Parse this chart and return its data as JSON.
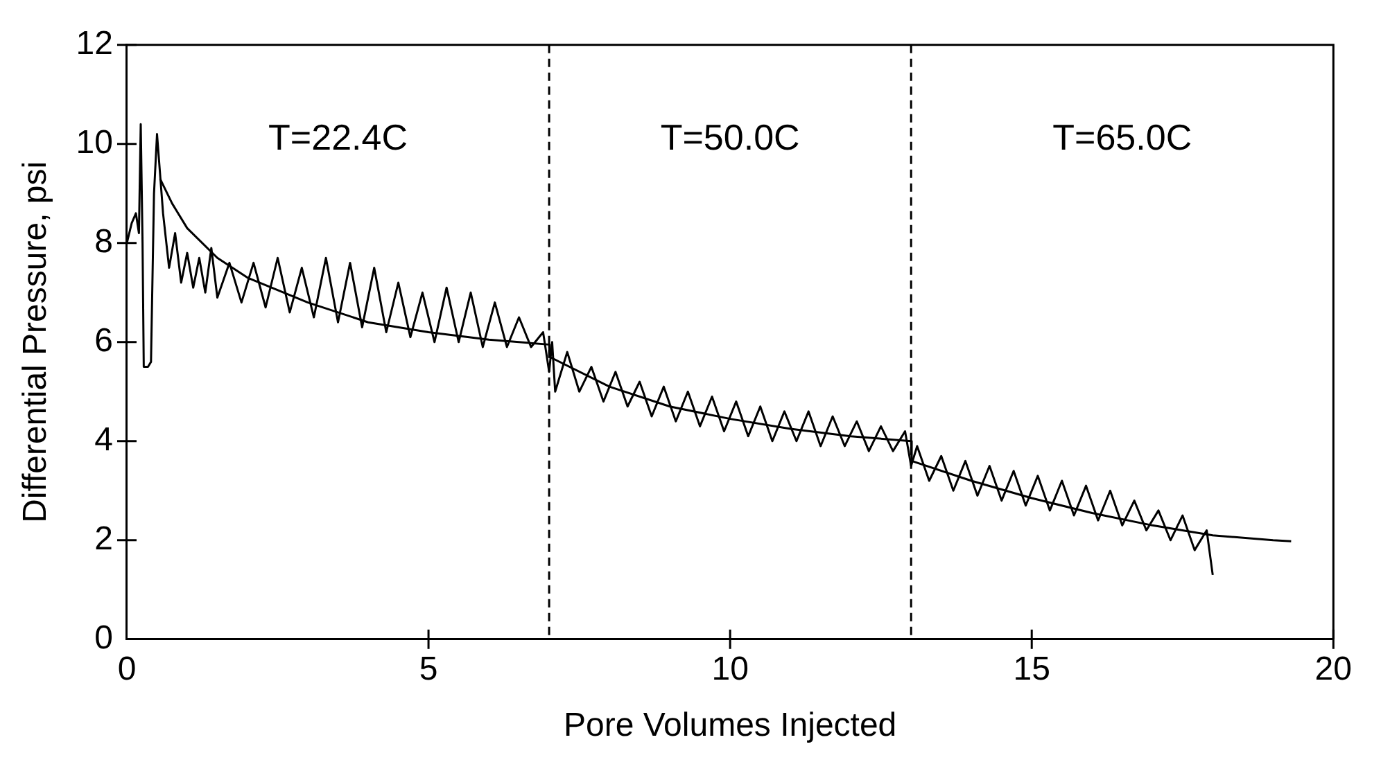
{
  "chart_data": {
    "type": "line",
    "xlabel": "Pore Volumes Injected",
    "ylabel": "Differential Pressure, psi",
    "xlim": [
      0,
      20
    ],
    "xticks": [
      0,
      5,
      10,
      15,
      20
    ],
    "ylim": [
      0,
      12
    ],
    "yticks": [
      0,
      2,
      4,
      6,
      8,
      10,
      12
    ],
    "grid": false,
    "legend": false,
    "marker": "none",
    "series": [
      {
        "color": "#000000",
        "line_style": "solid",
        "x": [
          0,
          0.08,
          0.15,
          0.2,
          0.23,
          0.26,
          0.28,
          0.35,
          0.4,
          0.45,
          0.5,
          0.55,
          0.6,
          0.7,
          0.8,
          0.9,
          1.0,
          1.1,
          1.2,
          1.3,
          1.4,
          1.5,
          1.7,
          1.9,
          2.1,
          2.3,
          2.5,
          2.7,
          2.9,
          3.1,
          3.3,
          3.5,
          3.7,
          3.9,
          4.1,
          4.3,
          4.5,
          4.7,
          4.9,
          5.1,
          5.3,
          5.5,
          5.7,
          5.9,
          6.1,
          6.3,
          6.5,
          6.7,
          6.9,
          7.0,
          7.05,
          7.1,
          7.3,
          7.5,
          7.7,
          7.9,
          8.1,
          8.3,
          8.5,
          8.7,
          8.9,
          9.1,
          9.3,
          9.5,
          9.7,
          9.9,
          10.1,
          10.3,
          10.5,
          10.7,
          10.9,
          11.1,
          11.3,
          11.5,
          11.7,
          11.9,
          12.1,
          12.3,
          12.5,
          12.7,
          12.9,
          13.0,
          13.1,
          13.3,
          13.5,
          13.7,
          13.9,
          14.1,
          14.3,
          14.5,
          14.7,
          14.9,
          15.1,
          15.3,
          15.5,
          15.7,
          15.9,
          16.1,
          16.3,
          16.5,
          16.7,
          16.9,
          17.1,
          17.3,
          17.5,
          17.7,
          17.9,
          18.0
        ],
        "values": [
          8.0,
          8.4,
          8.6,
          8.2,
          10.4,
          8.0,
          5.5,
          5.5,
          5.6,
          9.0,
          10.2,
          9.4,
          8.6,
          7.5,
          8.2,
          7.2,
          7.8,
          7.1,
          7.7,
          7.0,
          7.9,
          6.9,
          7.6,
          6.8,
          7.6,
          6.7,
          7.7,
          6.6,
          7.5,
          6.5,
          7.7,
          6.4,
          7.6,
          6.3,
          7.5,
          6.2,
          7.2,
          6.1,
          7.0,
          6.0,
          7.1,
          6.0,
          7.0,
          5.9,
          6.8,
          5.9,
          6.5,
          5.9,
          6.2,
          5.4,
          6.0,
          5.0,
          5.8,
          5.0,
          5.5,
          4.8,
          5.4,
          4.7,
          5.2,
          4.5,
          5.1,
          4.4,
          5.0,
          4.3,
          4.9,
          4.2,
          4.8,
          4.1,
          4.7,
          4.0,
          4.6,
          4.0,
          4.6,
          3.9,
          4.5,
          3.9,
          4.4,
          3.8,
          4.3,
          3.8,
          4.2,
          3.5,
          3.9,
          3.2,
          3.7,
          3.0,
          3.6,
          2.9,
          3.5,
          2.8,
          3.4,
          2.7,
          3.3,
          2.6,
          3.2,
          2.5,
          3.1,
          2.4,
          3.0,
          2.3,
          2.8,
          2.2,
          2.6,
          2.0,
          2.5,
          1.8,
          2.2,
          1.3
        ]
      },
      {
        "color": "#000000",
        "line_style": "solid",
        "x": [
          0.55,
          0.75,
          1,
          1.5,
          2,
          3,
          4,
          5,
          6,
          7,
          7.01,
          8,
          9,
          10,
          11,
          12,
          13,
          13.01,
          14,
          15,
          16,
          17,
          18,
          19,
          19.3
        ],
        "values": [
          9.3,
          8.8,
          8.3,
          7.7,
          7.3,
          6.8,
          6.4,
          6.2,
          6.05,
          5.95,
          5.7,
          5.1,
          4.7,
          4.45,
          4.25,
          4.1,
          4.0,
          3.6,
          3.2,
          2.85,
          2.55,
          2.3,
          2.1,
          2.0,
          1.98
        ]
      }
    ],
    "ref_lines": [
      {
        "axis": "x",
        "value": 7,
        "line_style": "dashed",
        "color": "#000000"
      },
      {
        "axis": "x",
        "value": 13,
        "line_style": "dashed",
        "color": "#000000"
      }
    ],
    "annotations": [
      "T=22.4C",
      "T=50.0C",
      "T=65.0C"
    ]
  }
}
